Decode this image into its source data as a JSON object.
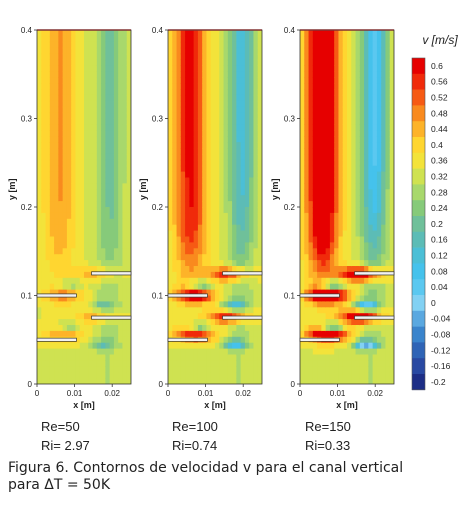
{
  "chart_data": {
    "type": "heatmap",
    "panels": [
      {
        "re": "Re=50",
        "ri": "Ri= 2.97",
        "intensity": 0.35
      },
      {
        "re": "Re=100",
        "ri": "Ri=0.74",
        "intensity": 0.7
      },
      {
        "re": "Re=150",
        "ri": "Ri=0.33",
        "intensity": 1.0
      }
    ],
    "x_ticks": [
      "0",
      "0.01",
      "0.02"
    ],
    "x_label": "x [m]",
    "y_ticks": [
      "0",
      "0.1",
      "0.2",
      "0.3",
      "0.4"
    ],
    "y_label": "y [m]",
    "xlim": [
      0,
      0.025
    ],
    "ylim": [
      0,
      0.4
    ],
    "plates": [
      {
        "side": "left",
        "y": 0.05
      },
      {
        "side": "left",
        "y": 0.1
      },
      {
        "side": "right",
        "y": 0.075
      },
      {
        "side": "right",
        "y": 0.125
      }
    ],
    "colorbar": {
      "title": "v [m/s]",
      "levels": [
        "0.6",
        "0.56",
        "0.52",
        "0.48",
        "0.44",
        "0.4",
        "0.36",
        "0.32",
        "0.28",
        "0.24",
        "0.2",
        "0.16",
        "0.12",
        "0.08",
        "0.04",
        "0",
        "-0.04",
        "-0.08",
        "-0.12",
        "-0.16",
        "-0.2"
      ],
      "colors": [
        "#e60000",
        "#f02a0a",
        "#f65a14",
        "#f98a1e",
        "#fdb329",
        "#ffd630",
        "#f3e33a",
        "#cfe251",
        "#a8d86c",
        "#86ca7a",
        "#6fc09a",
        "#5cbcb6",
        "#4bbfd6",
        "#45c2ec",
        "#5bc8f0",
        "#82d1f3",
        "#5aa8e0",
        "#3a84cc",
        "#2f64b6",
        "#2949a2",
        "#1d2e86"
      ]
    }
  },
  "caption": {
    "line1": "Figura 6.  Contornos de velocidad v para el canal vertical",
    "line2": "para ΔT = 50K"
  }
}
